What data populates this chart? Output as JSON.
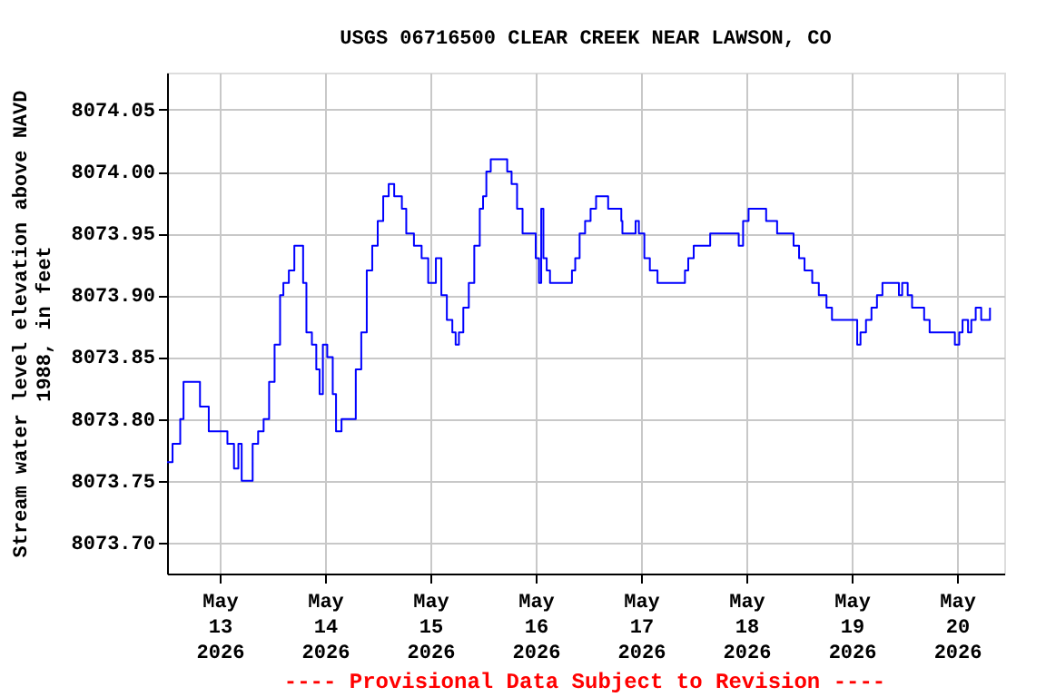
{
  "chart_data": {
    "type": "step",
    "title": "USGS 06716500 CLEAR CREEK NEAR LAWSON, CO",
    "ylabel": "Stream water level elevation above NAVD 1988, in feet",
    "annotations": [
      "---- Provisional Data Subject to Revision ----"
    ],
    "x": [
      "2026-05-12T12:00",
      "2026-05-12T13:15",
      "2026-05-12T15:00",
      "2026-05-12T15:45",
      "2026-05-12T18:15",
      "2026-05-12T19:30",
      "2026-05-12T21:30",
      "2026-05-13T00:30",
      "2026-05-13T01:45",
      "2026-05-13T03:15",
      "2026-05-13T04:15",
      "2026-05-13T05:00",
      "2026-05-13T06:30",
      "2026-05-13T07:30",
      "2026-05-13T08:45",
      "2026-05-13T10:00",
      "2026-05-13T11:15",
      "2026-05-13T12:30",
      "2026-05-13T13:45",
      "2026-05-13T14:30",
      "2026-05-13T15:45",
      "2026-05-13T17:00",
      "2026-05-13T18:15",
      "2026-05-13T19:00",
      "2026-05-13T19:45",
      "2026-05-13T21:00",
      "2026-05-13T22:00",
      "2026-05-13T22:45",
      "2026-05-13T23:30",
      "2026-05-14T00:30",
      "2026-05-14T01:45",
      "2026-05-14T02:30",
      "2026-05-14T03:45",
      "2026-05-14T05:45",
      "2026-05-14T07:00",
      "2026-05-14T08:15",
      "2026-05-14T09:30",
      "2026-05-14T10:45",
      "2026-05-14T12:00",
      "2026-05-14T13:15",
      "2026-05-14T14:30",
      "2026-05-14T15:45",
      "2026-05-14T17:30",
      "2026-05-14T18:30",
      "2026-05-14T20:15",
      "2026-05-14T22:00",
      "2026-05-14T23:30",
      "2026-05-15T01:15",
      "2026-05-15T02:30",
      "2026-05-15T03:45",
      "2026-05-15T05:00",
      "2026-05-15T05:45",
      "2026-05-15T06:30",
      "2026-05-15T07:30",
      "2026-05-15T08:45",
      "2026-05-15T10:00",
      "2026-05-15T11:15",
      "2026-05-15T12:00",
      "2026-05-15T12:45",
      "2026-05-15T13:45",
      "2026-05-15T16:15",
      "2026-05-15T17:30",
      "2026-05-15T18:30",
      "2026-05-15T19:45",
      "2026-05-15T21:00",
      "2026-05-15T23:15",
      "2026-05-16T00:00",
      "2026-05-16T00:45",
      "2026-05-16T01:15",
      "2026-05-16T01:45",
      "2026-05-16T02:30",
      "2026-05-16T03:15",
      "2026-05-16T07:00",
      "2026-05-16T08:15",
      "2026-05-16T09:00",
      "2026-05-16T10:00",
      "2026-05-16T11:15",
      "2026-05-16T12:30",
      "2026-05-16T13:45",
      "2026-05-16T15:45",
      "2026-05-16T16:30",
      "2026-05-16T18:30",
      "2026-05-16T19:30",
      "2026-05-16T19:45",
      "2026-05-16T21:45",
      "2026-05-16T22:45",
      "2026-05-16T23:30",
      "2026-05-17T00:45",
      "2026-05-17T02:00",
      "2026-05-17T03:45",
      "2026-05-17T09:00",
      "2026-05-17T10:00",
      "2026-05-17T10:45",
      "2026-05-17T12:00",
      "2026-05-17T15:00",
      "2026-05-17T15:45",
      "2026-05-17T21:30",
      "2026-05-17T22:15",
      "2026-05-17T23:15",
      "2026-05-18T00:30",
      "2026-05-18T03:15",
      "2026-05-18T04:30",
      "2026-05-18T06:45",
      "2026-05-18T07:00",
      "2026-05-18T10:00",
      "2026-05-18T10:45",
      "2026-05-18T12:00",
      "2026-05-18T13:15",
      "2026-05-18T15:00",
      "2026-05-18T16:30",
      "2026-05-18T18:15",
      "2026-05-18T19:30",
      "2026-05-18T22:45",
      "2026-05-19T01:15",
      "2026-05-19T02:00",
      "2026-05-19T03:15",
      "2026-05-19T04:30",
      "2026-05-19T05:45",
      "2026-05-19T07:00",
      "2026-05-19T10:30",
      "2026-05-19T10:45",
      "2026-05-19T11:30",
      "2026-05-19T12:45",
      "2026-05-19T13:45",
      "2026-05-19T15:15",
      "2026-05-19T16:30",
      "2026-05-19T17:45",
      "2026-05-19T22:45",
      "2026-05-19T23:30",
      "2026-05-20T00:30",
      "2026-05-20T01:15",
      "2026-05-20T02:30",
      "2026-05-20T03:15",
      "2026-05-20T04:15",
      "2026-05-20T05:30",
      "2026-05-20T06:45",
      "2026-05-20T07:30"
    ],
    "series": [
      {
        "color": "#0000ff",
        "values": [
          8073.765,
          8073.78,
          8073.8,
          8073.83,
          8073.83,
          8073.81,
          8073.79,
          8073.79,
          8073.78,
          8073.76,
          8073.78,
          8073.75,
          8073.75,
          8073.78,
          8073.79,
          8073.8,
          8073.83,
          8073.86,
          8073.9,
          8073.91,
          8073.92,
          8073.94,
          8073.94,
          8073.91,
          8073.87,
          8073.86,
          8073.84,
          8073.82,
          8073.86,
          8073.85,
          8073.82,
          8073.79,
          8073.8,
          8073.8,
          8073.84,
          8073.87,
          8073.92,
          8073.94,
          8073.96,
          8073.98,
          8073.99,
          8073.98,
          8073.97,
          8073.95,
          8073.94,
          8073.93,
          8073.91,
          8073.93,
          8073.9,
          8073.88,
          8073.87,
          8073.86,
          8073.87,
          8073.89,
          8073.91,
          8073.94,
          8073.97,
          8073.98,
          8074.0,
          8074.01,
          8074.01,
          8074.0,
          8073.99,
          8073.97,
          8073.95,
          8073.95,
          8073.93,
          8073.91,
          8073.97,
          8073.93,
          8073.92,
          8073.91,
          8073.91,
          8073.92,
          8073.93,
          8073.95,
          8073.96,
          8073.97,
          8073.98,
          8073.98,
          8073.97,
          8073.97,
          8073.96,
          8073.95,
          8073.95,
          8073.96,
          8073.95,
          8073.93,
          8073.92,
          8073.91,
          8073.91,
          8073.92,
          8073.93,
          8073.94,
          8073.94,
          8073.95,
          8073.95,
          8073.94,
          8073.96,
          8073.97,
          8073.97,
          8073.96,
          8073.96,
          8073.95,
          8073.95,
          8073.94,
          8073.93,
          8073.92,
          8073.91,
          8073.9,
          8073.89,
          8073.88,
          8073.88,
          8073.86,
          8073.87,
          8073.88,
          8073.89,
          8073.9,
          8073.91,
          8073.91,
          8073.9,
          8073.91,
          8073.9,
          8073.89,
          8073.89,
          8073.88,
          8073.87,
          8073.87,
          8073.86,
          8073.87,
          8073.88,
          8073.87,
          8073.88,
          8073.89,
          8073.88,
          8073.88,
          8073.89
        ]
      }
    ],
    "xlim": [
      "2026-05-12T12:00",
      "2026-05-20T10:45"
    ],
    "xticks": [
      {
        "value": "2026-05-13",
        "label": "May 13 2026"
      },
      {
        "value": "2026-05-14",
        "label": "May 14 2026"
      },
      {
        "value": "2026-05-15",
        "label": "May 15 2026"
      },
      {
        "value": "2026-05-16",
        "label": "May 16 2026"
      },
      {
        "value": "2026-05-17",
        "label": "May 17 2026"
      },
      {
        "value": "2026-05-18",
        "label": "May 18 2026"
      },
      {
        "value": "2026-05-19",
        "label": "May 19 2026"
      },
      {
        "value": "2026-05-20",
        "label": "May 20 2026"
      }
    ],
    "ylim": [
      8073.675,
      8074.08
    ],
    "yticks": [
      {
        "value": 8073.7,
        "label": "8073.70"
      },
      {
        "value": 8073.75,
        "label": "8073.75"
      },
      {
        "value": 8073.8,
        "label": "8073.80"
      },
      {
        "value": 8073.85,
        "label": "8073.85"
      },
      {
        "value": 8073.9,
        "label": "8073.90"
      },
      {
        "value": 8073.95,
        "label": "8073.95"
      },
      {
        "value": 8074.0,
        "label": "8074.00"
      },
      {
        "value": 8074.05,
        "label": "8074.05"
      }
    ],
    "grid": true,
    "line_style": "solid",
    "marker": "none"
  }
}
